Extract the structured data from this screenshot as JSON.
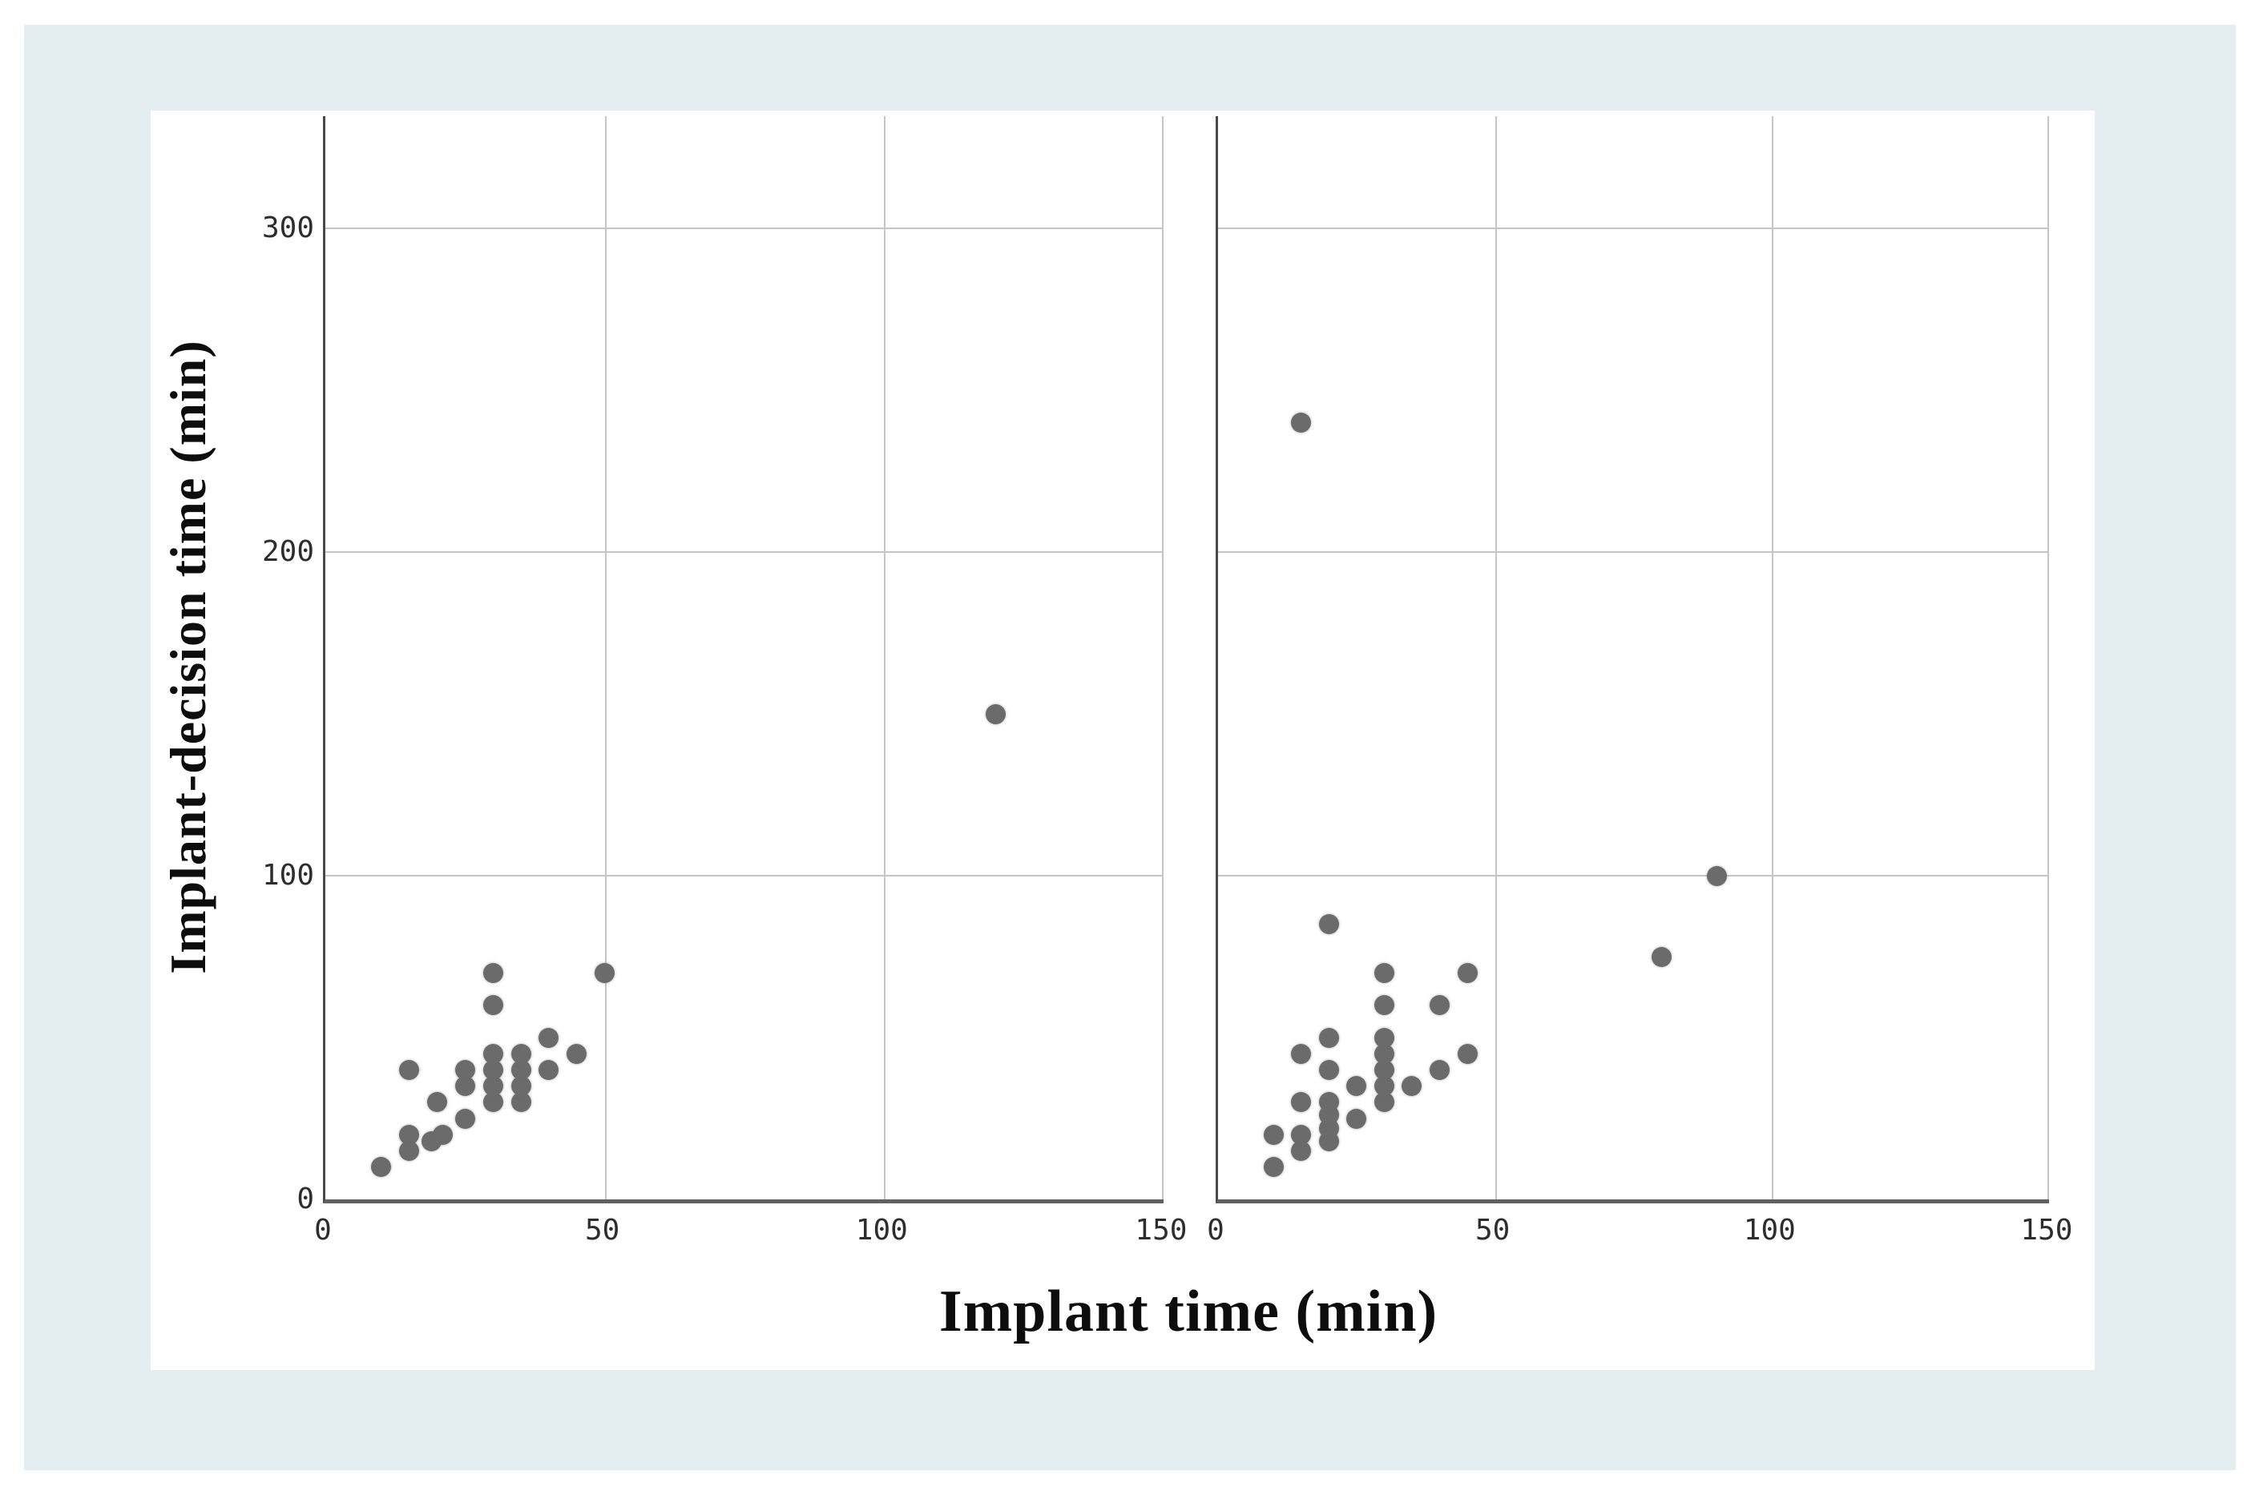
{
  "page": {
    "background_color": "#ffffff",
    "panel_color": "#e4eef1",
    "card_color": "#ffffff"
  },
  "chart": {
    "x_axis_title": "Implant time (min)",
    "y_axis_title": "Implant-decision time (min)",
    "dot_color": "#6b6b6b",
    "gridline_color": "#c5c5c5",
    "axis_color": "#4a4a4a",
    "tick_color": "#2d2d2d"
  },
  "chart_data": [
    {
      "type": "scatter",
      "panel": "left",
      "xlabel": "Implant time (min)",
      "ylabel": "Implant-decision time (min)",
      "x_range": [
        0,
        150
      ],
      "y_range": [
        0,
        335
      ],
      "x_ticks": [
        0,
        50,
        100,
        150
      ],
      "y_ticks": [
        0,
        100,
        200,
        300
      ],
      "grid": true,
      "points": [
        [
          10,
          10
        ],
        [
          15,
          15
        ],
        [
          15,
          20
        ],
        [
          15,
          40
        ],
        [
          19,
          18
        ],
        [
          21,
          20
        ],
        [
          20,
          30
        ],
        [
          25,
          25
        ],
        [
          25,
          35
        ],
        [
          25,
          40
        ],
        [
          30,
          30
        ],
        [
          30,
          35
        ],
        [
          30,
          40
        ],
        [
          30,
          45
        ],
        [
          30,
          60
        ],
        [
          30,
          70
        ],
        [
          35,
          30
        ],
        [
          35,
          35
        ],
        [
          35,
          40
        ],
        [
          35,
          45
        ],
        [
          40,
          40
        ],
        [
          40,
          50
        ],
        [
          45,
          45
        ],
        [
          50,
          70
        ],
        [
          120,
          150
        ]
      ]
    },
    {
      "type": "scatter",
      "panel": "right",
      "xlabel": "Implant time (min)",
      "ylabel": "Implant-decision time (min)",
      "x_range": [
        0,
        150
      ],
      "y_range": [
        0,
        335
      ],
      "x_ticks": [
        0,
        50,
        100,
        150
      ],
      "y_ticks": [
        0,
        100,
        200,
        300
      ],
      "grid": true,
      "points": [
        [
          10,
          10
        ],
        [
          10,
          20
        ],
        [
          15,
          15
        ],
        [
          15,
          20
        ],
        [
          15,
          30
        ],
        [
          15,
          45
        ],
        [
          20,
          18
        ],
        [
          20,
          22
        ],
        [
          20,
          26
        ],
        [
          20,
          30
        ],
        [
          20,
          40
        ],
        [
          20,
          50
        ],
        [
          20,
          85
        ],
        [
          25,
          25
        ],
        [
          25,
          35
        ],
        [
          30,
          30
        ],
        [
          30,
          35
        ],
        [
          30,
          40
        ],
        [
          30,
          45
        ],
        [
          30,
          50
        ],
        [
          30,
          60
        ],
        [
          30,
          70
        ],
        [
          35,
          35
        ],
        [
          40,
          40
        ],
        [
          40,
          60
        ],
        [
          45,
          45
        ],
        [
          45,
          70
        ],
        [
          80,
          75
        ],
        [
          90,
          100
        ],
        [
          15,
          240
        ]
      ]
    }
  ]
}
